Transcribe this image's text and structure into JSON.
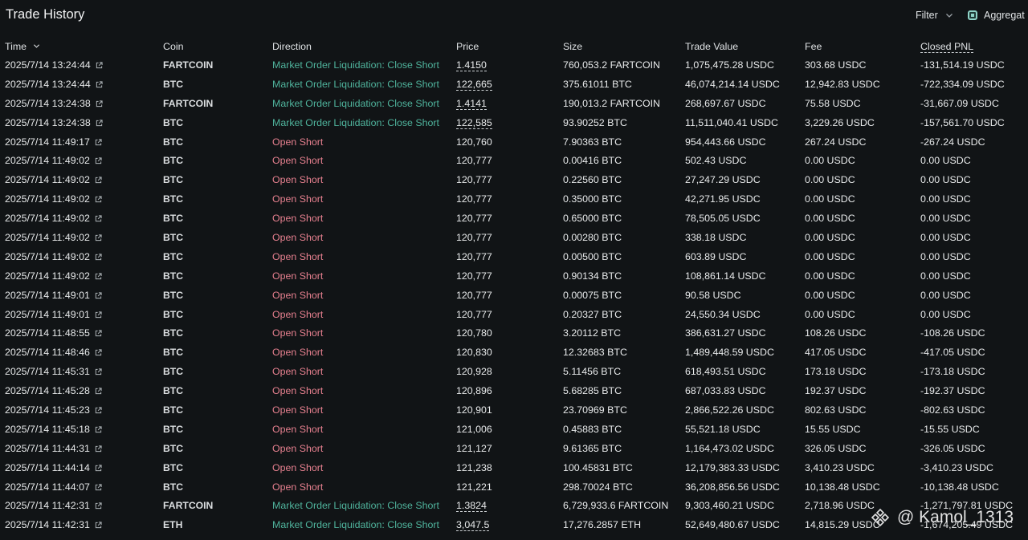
{
  "header": {
    "title": "Trade History",
    "filter_label": "Filter",
    "aggregate_label": "Aggregat",
    "aggregate_checked": true
  },
  "columns": [
    "Time",
    "Coin",
    "Direction",
    "Price",
    "Size",
    "Trade Value",
    "Fee",
    "Closed PNL"
  ],
  "rows": [
    {
      "time": "2025/7/14 13:24:44",
      "coin": "FARTCOIN",
      "direction": "Market Order Liquidation: Close Short",
      "dir_type": "close",
      "price": "1.4150",
      "price_underlined": true,
      "size": "760,053.2 FARTCOIN",
      "value": "1,075,475.28 USDC",
      "fee": "303.68 USDC",
      "pnl": "-131,514.19 USDC"
    },
    {
      "time": "2025/7/14 13:24:44",
      "coin": "BTC",
      "direction": "Market Order Liquidation: Close Short",
      "dir_type": "close",
      "price": "122,665",
      "price_underlined": true,
      "size": "375.61011 BTC",
      "value": "46,074,214.14 USDC",
      "fee": "12,942.83 USDC",
      "pnl": "-722,334.09 USDC"
    },
    {
      "time": "2025/7/14 13:24:38",
      "coin": "FARTCOIN",
      "direction": "Market Order Liquidation: Close Short",
      "dir_type": "close",
      "price": "1.4141",
      "price_underlined": true,
      "size": "190,013.2 FARTCOIN",
      "value": "268,697.67 USDC",
      "fee": "75.58 USDC",
      "pnl": "-31,667.09 USDC"
    },
    {
      "time": "2025/7/14 13:24:38",
      "coin": "BTC",
      "direction": "Market Order Liquidation: Close Short",
      "dir_type": "close",
      "price": "122,585",
      "price_underlined": true,
      "size": "93.90252 BTC",
      "value": "11,511,040.41 USDC",
      "fee": "3,229.26 USDC",
      "pnl": "-157,561.70 USDC"
    },
    {
      "time": "2025/7/14 11:49:17",
      "coin": "BTC",
      "direction": "Open Short",
      "dir_type": "open",
      "price": "120,760",
      "price_underlined": false,
      "size": "7.90363 BTC",
      "value": "954,443.66 USDC",
      "fee": "267.24 USDC",
      "pnl": "-267.24 USDC"
    },
    {
      "time": "2025/7/14 11:49:02",
      "coin": "BTC",
      "direction": "Open Short",
      "dir_type": "open",
      "price": "120,777",
      "price_underlined": false,
      "size": "0.00416 BTC",
      "value": "502.43 USDC",
      "fee": "0.00 USDC",
      "pnl": "0.00 USDC"
    },
    {
      "time": "2025/7/14 11:49:02",
      "coin": "BTC",
      "direction": "Open Short",
      "dir_type": "open",
      "price": "120,777",
      "price_underlined": false,
      "size": "0.22560 BTC",
      "value": "27,247.29 USDC",
      "fee": "0.00 USDC",
      "pnl": "0.00 USDC"
    },
    {
      "time": "2025/7/14 11:49:02",
      "coin": "BTC",
      "direction": "Open Short",
      "dir_type": "open",
      "price": "120,777",
      "price_underlined": false,
      "size": "0.35000 BTC",
      "value": "42,271.95 USDC",
      "fee": "0.00 USDC",
      "pnl": "0.00 USDC"
    },
    {
      "time": "2025/7/14 11:49:02",
      "coin": "BTC",
      "direction": "Open Short",
      "dir_type": "open",
      "price": "120,777",
      "price_underlined": false,
      "size": "0.65000 BTC",
      "value": "78,505.05 USDC",
      "fee": "0.00 USDC",
      "pnl": "0.00 USDC"
    },
    {
      "time": "2025/7/14 11:49:02",
      "coin": "BTC",
      "direction": "Open Short",
      "dir_type": "open",
      "price": "120,777",
      "price_underlined": false,
      "size": "0.00280 BTC",
      "value": "338.18 USDC",
      "fee": "0.00 USDC",
      "pnl": "0.00 USDC"
    },
    {
      "time": "2025/7/14 11:49:02",
      "coin": "BTC",
      "direction": "Open Short",
      "dir_type": "open",
      "price": "120,777",
      "price_underlined": false,
      "size": "0.00500 BTC",
      "value": "603.89 USDC",
      "fee": "0.00 USDC",
      "pnl": "0.00 USDC"
    },
    {
      "time": "2025/7/14 11:49:02",
      "coin": "BTC",
      "direction": "Open Short",
      "dir_type": "open",
      "price": "120,777",
      "price_underlined": false,
      "size": "0.90134 BTC",
      "value": "108,861.14 USDC",
      "fee": "0.00 USDC",
      "pnl": "0.00 USDC"
    },
    {
      "time": "2025/7/14 11:49:01",
      "coin": "BTC",
      "direction": "Open Short",
      "dir_type": "open",
      "price": "120,777",
      "price_underlined": false,
      "size": "0.00075 BTC",
      "value": "90.58 USDC",
      "fee": "0.00 USDC",
      "pnl": "0.00 USDC"
    },
    {
      "time": "2025/7/14 11:49:01",
      "coin": "BTC",
      "direction": "Open Short",
      "dir_type": "open",
      "price": "120,777",
      "price_underlined": false,
      "size": "0.20327 BTC",
      "value": "24,550.34 USDC",
      "fee": "0.00 USDC",
      "pnl": "0.00 USDC"
    },
    {
      "time": "2025/7/14 11:48:55",
      "coin": "BTC",
      "direction": "Open Short",
      "dir_type": "open",
      "price": "120,780",
      "price_underlined": false,
      "size": "3.20112 BTC",
      "value": "386,631.27 USDC",
      "fee": "108.26 USDC",
      "pnl": "-108.26 USDC"
    },
    {
      "time": "2025/7/14 11:48:46",
      "coin": "BTC",
      "direction": "Open Short",
      "dir_type": "open",
      "price": "120,830",
      "price_underlined": false,
      "size": "12.32683 BTC",
      "value": "1,489,448.59 USDC",
      "fee": "417.05 USDC",
      "pnl": "-417.05 USDC"
    },
    {
      "time": "2025/7/14 11:45:31",
      "coin": "BTC",
      "direction": "Open Short",
      "dir_type": "open",
      "price": "120,928",
      "price_underlined": false,
      "size": "5.11456 BTC",
      "value": "618,493.51 USDC",
      "fee": "173.18 USDC",
      "pnl": "-173.18 USDC"
    },
    {
      "time": "2025/7/14 11:45:28",
      "coin": "BTC",
      "direction": "Open Short",
      "dir_type": "open",
      "price": "120,896",
      "price_underlined": false,
      "size": "5.68285 BTC",
      "value": "687,033.83 USDC",
      "fee": "192.37 USDC",
      "pnl": "-192.37 USDC"
    },
    {
      "time": "2025/7/14 11:45:23",
      "coin": "BTC",
      "direction": "Open Short",
      "dir_type": "open",
      "price": "120,901",
      "price_underlined": false,
      "size": "23.70969 BTC",
      "value": "2,866,522.26 USDC",
      "fee": "802.63 USDC",
      "pnl": "-802.63 USDC"
    },
    {
      "time": "2025/7/14 11:45:18",
      "coin": "BTC",
      "direction": "Open Short",
      "dir_type": "open",
      "price": "121,006",
      "price_underlined": false,
      "size": "0.45883 BTC",
      "value": "55,521.18 USDC",
      "fee": "15.55 USDC",
      "pnl": "-15.55 USDC"
    },
    {
      "time": "2025/7/14 11:44:31",
      "coin": "BTC",
      "direction": "Open Short",
      "dir_type": "open",
      "price": "121,127",
      "price_underlined": false,
      "size": "9.61365 BTC",
      "value": "1,164,473.02 USDC",
      "fee": "326.05 USDC",
      "pnl": "-326.05 USDC"
    },
    {
      "time": "2025/7/14 11:44:14",
      "coin": "BTC",
      "direction": "Open Short",
      "dir_type": "open",
      "price": "121,238",
      "price_underlined": false,
      "size": "100.45831 BTC",
      "value": "12,179,383.33 USDC",
      "fee": "3,410.23 USDC",
      "pnl": "-3,410.23 USDC"
    },
    {
      "time": "2025/7/14 11:44:07",
      "coin": "BTC",
      "direction": "Open Short",
      "dir_type": "open",
      "price": "121,221",
      "price_underlined": false,
      "size": "298.70024 BTC",
      "value": "36,208,856.56 USDC",
      "fee": "10,138.48 USDC",
      "pnl": "-10,138.48 USDC"
    },
    {
      "time": "2025/7/14 11:42:31",
      "coin": "FARTCOIN",
      "direction": "Market Order Liquidation: Close Short",
      "dir_type": "close",
      "price": "1.3824",
      "price_underlined": true,
      "size": "6,729,933.6 FARTCOIN",
      "value": "9,303,460.21 USDC",
      "fee": "2,718.96 USDC",
      "pnl": "-1,271,797.81 USDC"
    },
    {
      "time": "2025/7/14 11:42:31",
      "coin": "ETH",
      "direction": "Market Order Liquidation: Close Short",
      "dir_type": "close",
      "price": "3,047.5",
      "price_underlined": true,
      "size": "17,276.2857 ETH",
      "value": "52,649,480.67 USDC",
      "fee": "14,815.29 USDC",
      "pnl": "-1,674,205.49 USDC"
    }
  ],
  "watermark": {
    "text": "@ Kamol_1313",
    "icon": "binance-square-icon"
  },
  "colors": {
    "background": "#111416",
    "close_direction": "#4fb39c",
    "open_direction": "#e6808f",
    "accent": "#8fd3c7"
  }
}
